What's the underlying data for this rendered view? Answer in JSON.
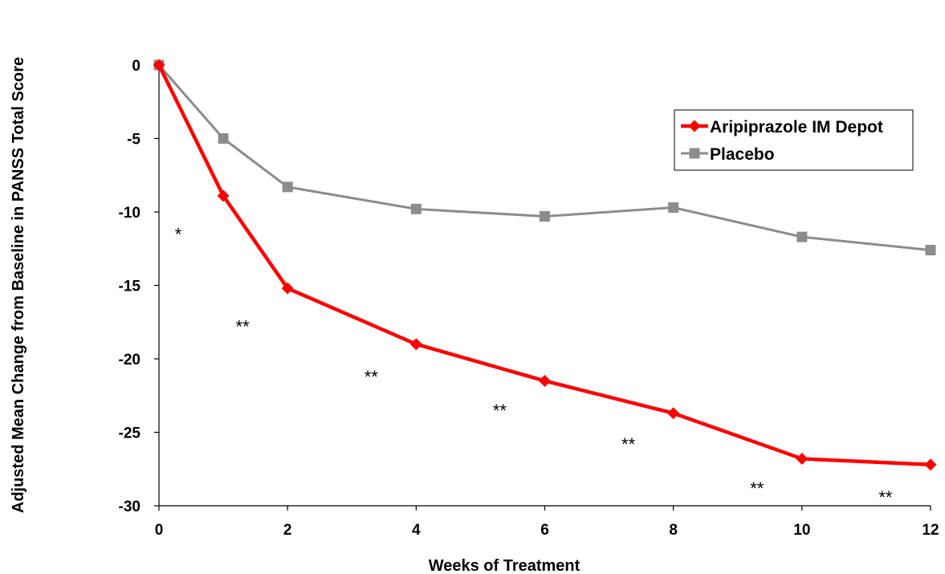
{
  "chart_data": {
    "type": "line",
    "xlabel": "Weeks of Treatment",
    "ylabel": "Adjusted Mean Change from Baseline in PANSS Total Score",
    "xlim": [
      0,
      12
    ],
    "ylim": [
      -30,
      0
    ],
    "xticks": [
      0,
      2,
      4,
      6,
      8,
      10,
      12
    ],
    "yticks": [
      0,
      -5,
      -10,
      -15,
      -20,
      -25,
      -30
    ],
    "grid": false,
    "legend_position": "top-right",
    "series": [
      {
        "name": "Aripiprazole IM Depot",
        "color": "#ff0000",
        "marker": "diamond",
        "x": [
          0,
          1,
          2,
          4,
          6,
          8,
          10,
          12
        ],
        "y": [
          0,
          -8.9,
          -15.2,
          -19.0,
          -21.5,
          -23.7,
          -26.8,
          -27.2
        ]
      },
      {
        "name": "Placebo",
        "color": "#8c8c8c",
        "marker": "square",
        "x": [
          0,
          1,
          2,
          4,
          6,
          8,
          10,
          12
        ],
        "y": [
          0,
          -5.0,
          -8.3,
          -9.8,
          -10.3,
          -9.7,
          -11.7,
          -12.6
        ]
      }
    ],
    "annotations": [
      {
        "text": "*",
        "x": 0.3,
        "y": -11.5
      },
      {
        "text": "**",
        "x": 1.3,
        "y": -17.8
      },
      {
        "text": "**",
        "x": 3.3,
        "y": -21.2
      },
      {
        "text": "**",
        "x": 5.3,
        "y": -23.5
      },
      {
        "text": "**",
        "x": 7.3,
        "y": -25.8
      },
      {
        "text": "**",
        "x": 9.3,
        "y": -28.8
      },
      {
        "text": "**",
        "x": 11.3,
        "y": -29.4
      }
    ]
  }
}
